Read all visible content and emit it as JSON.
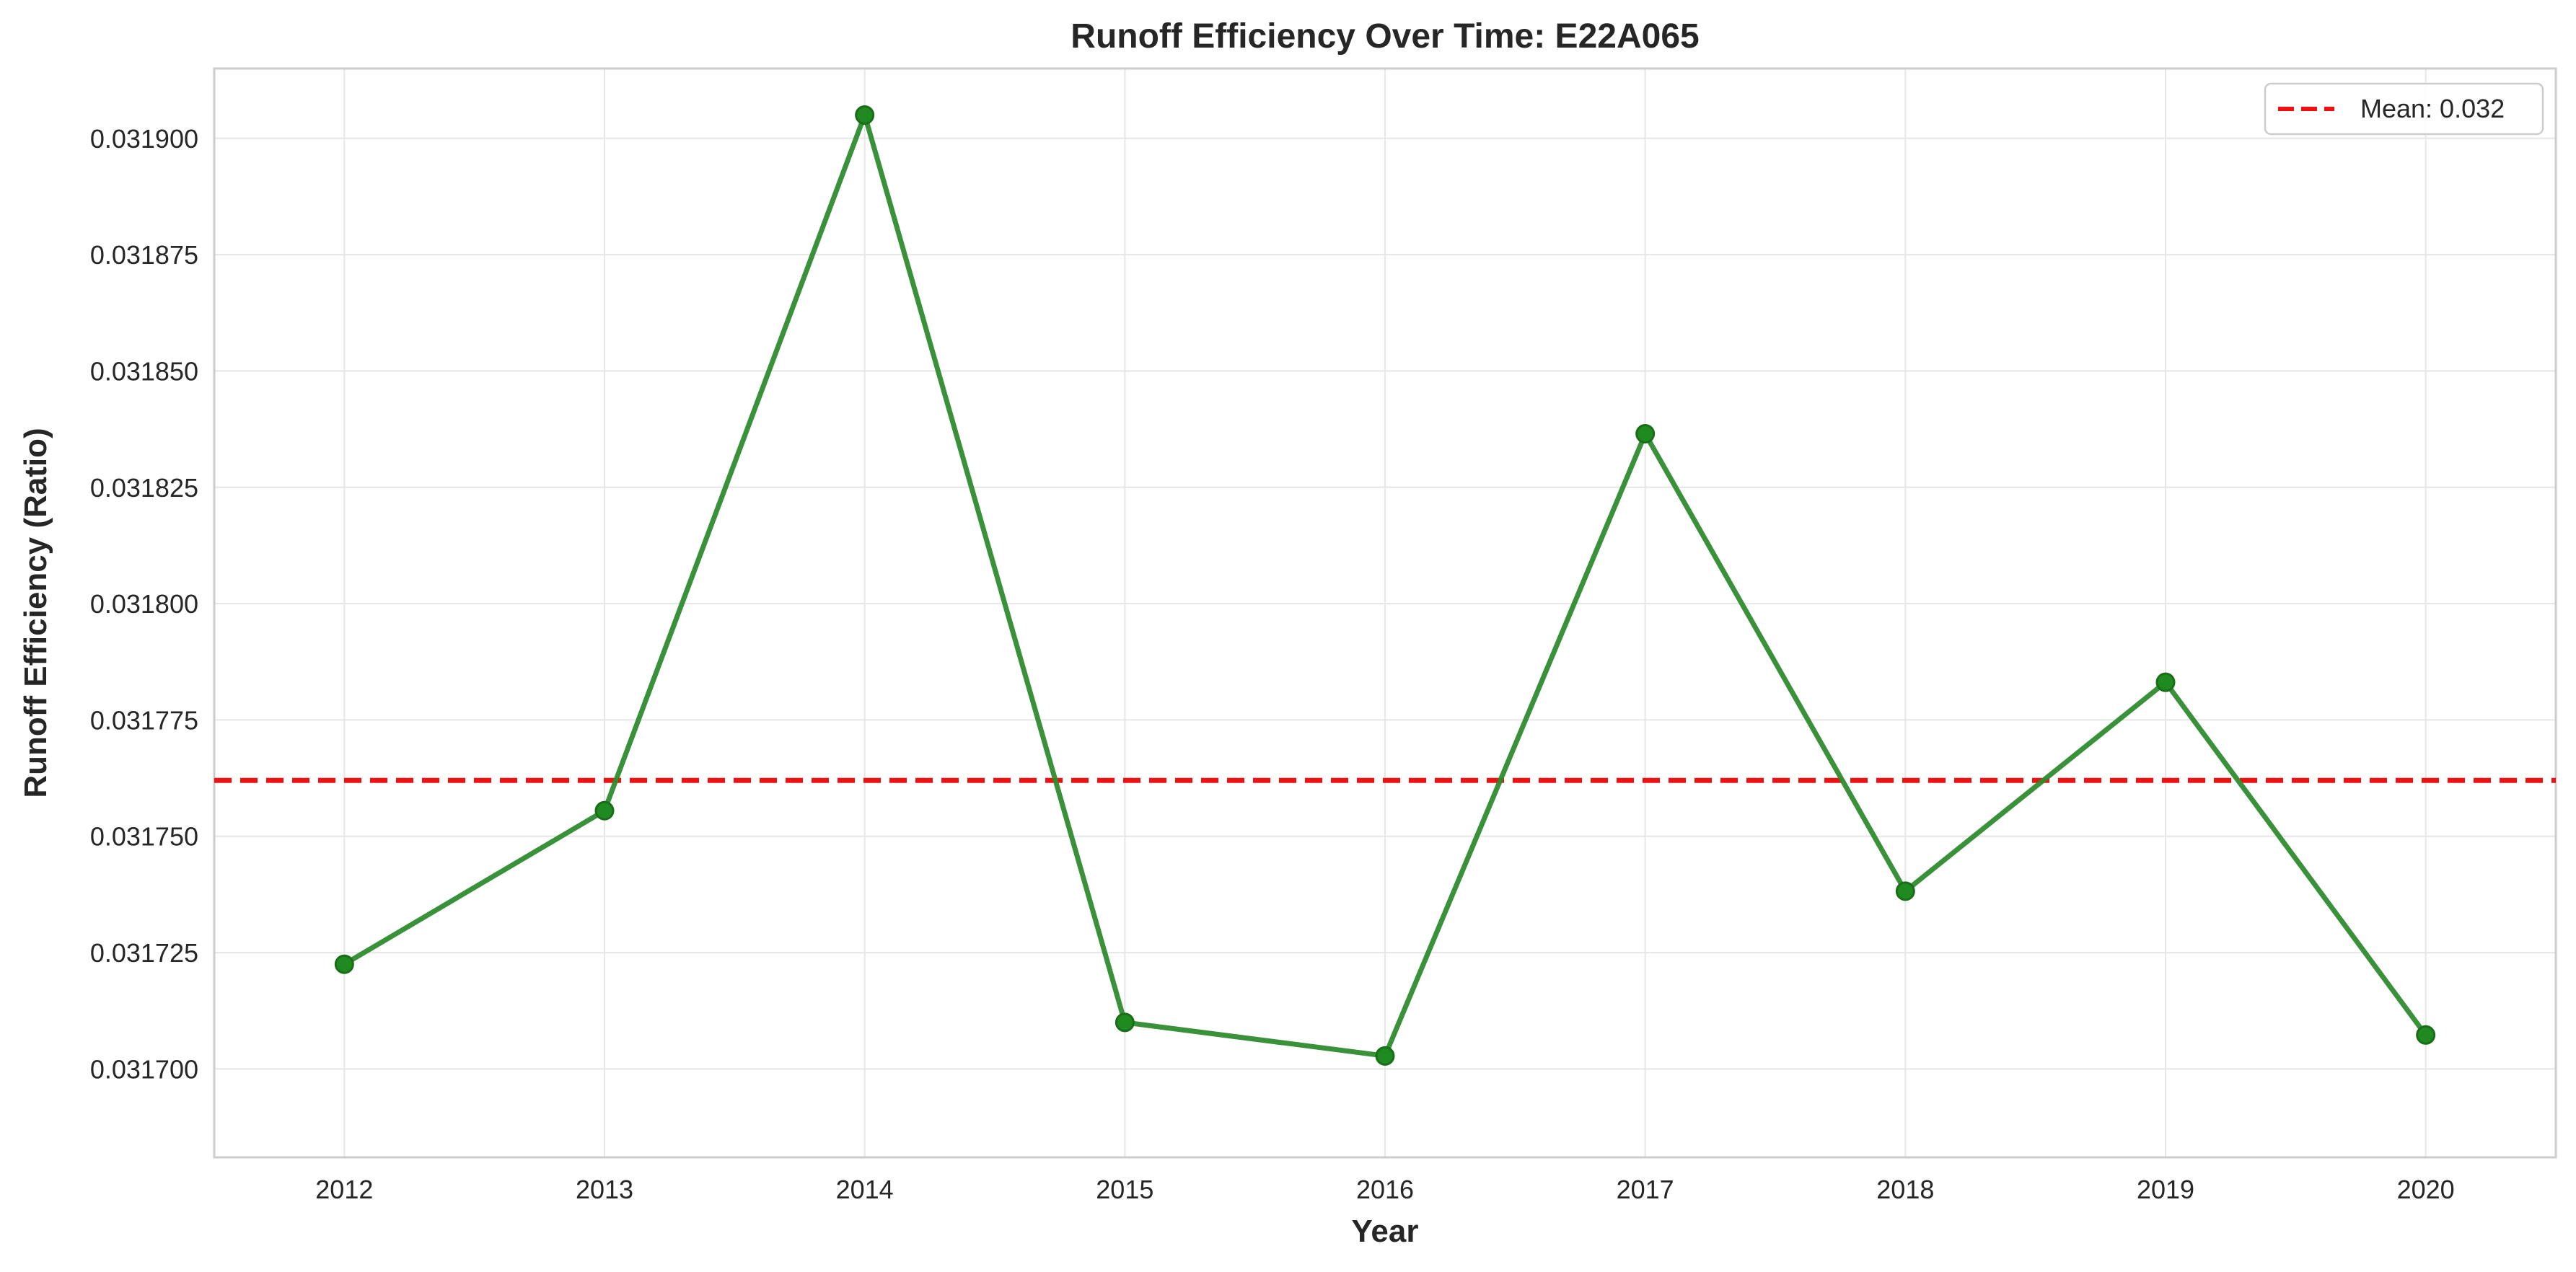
{
  "chart_data": {
    "type": "line",
    "title": "Runoff Efficiency Over Time: E22A065",
    "xlabel": "Year",
    "ylabel": "Runoff Efficiency (Ratio)",
    "categories": [
      "2012",
      "2013",
      "2014",
      "2015",
      "2016",
      "2017",
      "2018",
      "2019",
      "2020"
    ],
    "x_ticks": [
      "2012",
      "2013",
      "2014",
      "2015",
      "2016",
      "2017",
      "2018",
      "2019",
      "2020"
    ],
    "y_ticks": [
      "0.031700",
      "0.031725",
      "0.031750",
      "0.031775",
      "0.031800",
      "0.031825",
      "0.031850",
      "0.031875",
      "0.031900"
    ],
    "y_tick_values": [
      0.0317,
      0.031725,
      0.03175,
      0.031775,
      0.0318,
      0.031825,
      0.03185,
      0.031875,
      0.0319
    ],
    "ylim": [
      0.031681,
      0.031915
    ],
    "series": [
      {
        "values": [
          0.0317225,
          0.0317555,
          0.031905,
          0.03171,
          0.0317028,
          0.0318365,
          0.0317382,
          0.0317831,
          0.0317073
        ],
        "color": "#2e8b2e",
        "marker": "circle"
      }
    ],
    "reference_lines": [
      {
        "value": 0.031762,
        "label": "Mean: 0.032",
        "color": "#ee1111",
        "style": "dashed"
      }
    ],
    "grid": true,
    "legend_position": "top-right",
    "colors": {
      "line": "#2e8b2e",
      "marker": "#1f8a1f",
      "mean": "#ee1111",
      "grid": "#e6e6e6",
      "frame": "#cccccc",
      "text": "#262626"
    }
  }
}
